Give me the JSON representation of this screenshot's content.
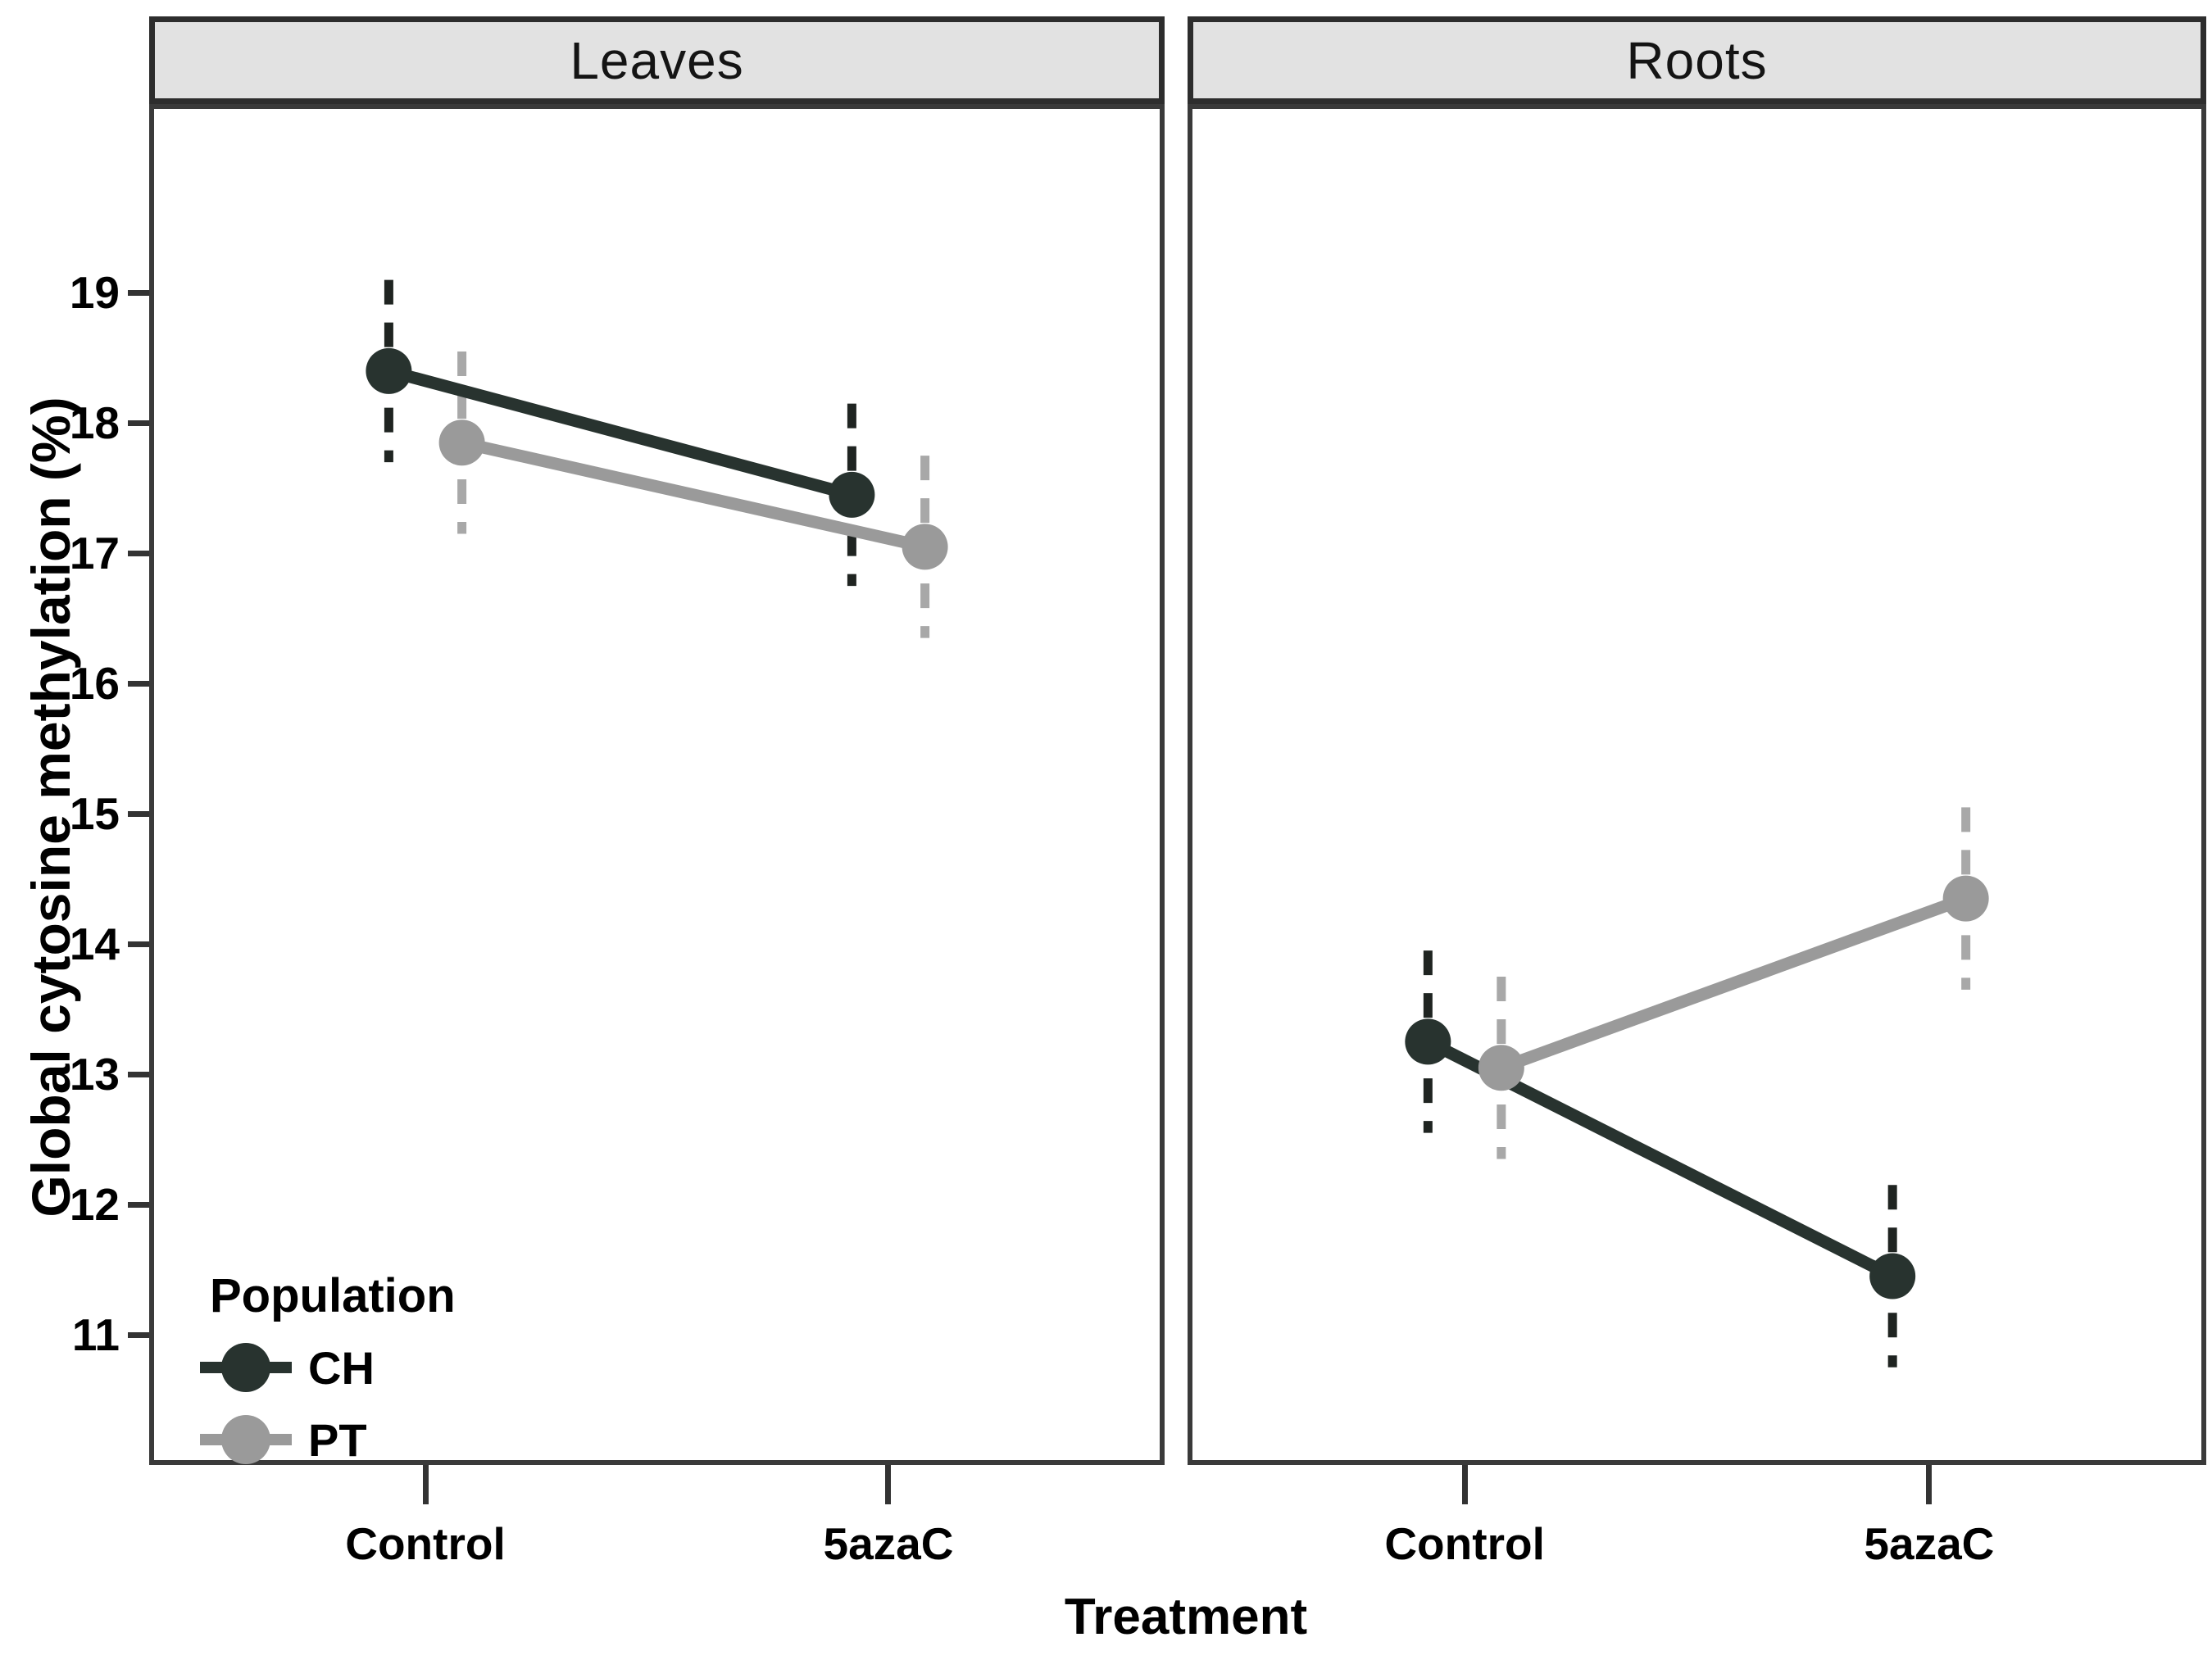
{
  "figure": {
    "kind": "faceted interaction plot (points with dashed error bars and connecting lines)"
  },
  "legend": {
    "title": "Population",
    "entries": [
      {
        "label": "CH",
        "color": "#28332f",
        "error_color": "#1f2421"
      },
      {
        "label": "PT",
        "color": "#9a9a9a",
        "error_color": "#a8a8a8"
      }
    ]
  },
  "chart_data": {
    "type": "line",
    "title": "",
    "xlabel": "Treatment",
    "ylabel": "Global cytosine methylation (%)",
    "categories": [
      "Control",
      "5azaC"
    ],
    "y_ticks": [
      11,
      12,
      13,
      14,
      15,
      16,
      17,
      18,
      19
    ],
    "ylim": [
      10.0,
      20.45
    ],
    "grid": false,
    "legend_position": "inside bottom-left of Leaves panel",
    "facets": [
      {
        "name": "Leaves",
        "series": [
          {
            "name": "CH",
            "color": "#28332f",
            "error_color": "#1f2421",
            "values": [
              18.4,
              17.45
            ],
            "err_low": [
              17.7,
              16.75
            ],
            "err_high": [
              19.1,
              18.15
            ]
          },
          {
            "name": "PT",
            "color": "#9a9a9a",
            "error_color": "#a8a8a8",
            "values": [
              17.85,
              17.05
            ],
            "err_low": [
              17.15,
              16.35
            ],
            "err_high": [
              18.55,
              17.75
            ]
          }
        ]
      },
      {
        "name": "Roots",
        "series": [
          {
            "name": "CH",
            "color": "#28332f",
            "error_color": "#1f2421",
            "values": [
              13.25,
              11.45
            ],
            "err_low": [
              12.55,
              10.75
            ],
            "err_high": [
              13.95,
              12.15
            ]
          },
          {
            "name": "PT",
            "color": "#9a9a9a",
            "error_color": "#a8a8a8",
            "values": [
              13.05,
              14.35
            ],
            "err_low": [
              12.35,
              13.65
            ],
            "err_high": [
              13.75,
              15.05
            ]
          }
        ]
      }
    ]
  }
}
